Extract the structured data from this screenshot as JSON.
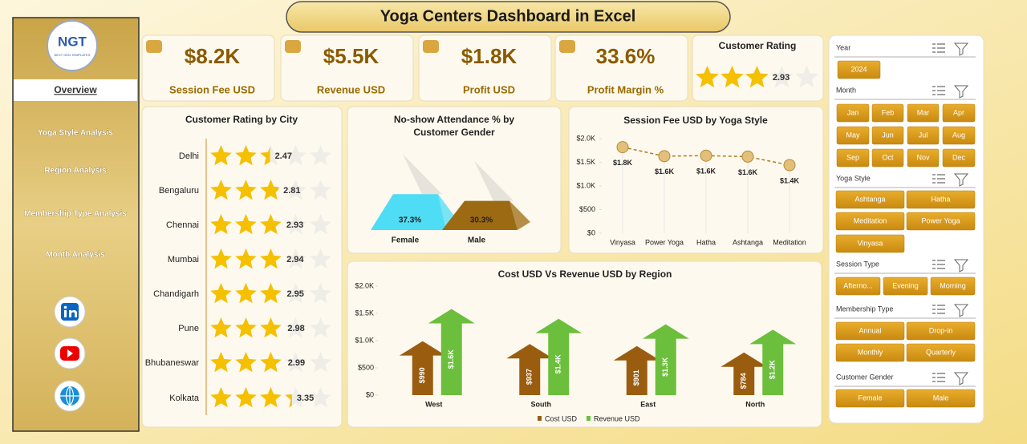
{
  "header": {
    "title": "Yoga Centers Dashboard in Excel"
  },
  "logo": {
    "name": "NGT",
    "tagline": "NEXT GEN TEMPLATES"
  },
  "nav": {
    "active": "Overview",
    "items": [
      "Yoga Style Analysis",
      "Region Analysis",
      "Membership Type Analysis",
      "Month Analysis"
    ]
  },
  "kpis": [
    {
      "value": "$8.2K",
      "label": "Session Fee USD"
    },
    {
      "value": "$5.5K",
      "label": "Revenue USD"
    },
    {
      "value": "$1.8K",
      "label": "Profit USD"
    },
    {
      "value": "33.6%",
      "label": "Profit Margin %"
    }
  ],
  "chart_data": [
    {
      "type": "rating",
      "title": "Customer Rating",
      "values": [
        2.93
      ],
      "xlim": [
        0,
        5
      ],
      "color": "#f5c000"
    },
    {
      "type": "rating",
      "title": "Customer Rating by City",
      "categories": [
        "Delhi",
        "Bengaluru",
        "Chennai",
        "Mumbai",
        "Chandigarh",
        "Pune",
        "Bhubaneswar",
        "Kolkata"
      ],
      "values": [
        2.47,
        2.81,
        2.93,
        2.94,
        2.95,
        2.98,
        2.99,
        3.35
      ],
      "xlim": [
        0,
        5
      ],
      "color": "#f5c000"
    },
    {
      "type": "prism",
      "title": "No-show Attendance % by Customer Gender",
      "categories": [
        "Female",
        "Male"
      ],
      "values": [
        37.3,
        30.3
      ],
      "value_labels": [
        "37.3%",
        "30.3%"
      ],
      "colors": [
        "#4fdcf5",
        "#9c6a12"
      ]
    },
    {
      "type": "line",
      "title": "Session Fee USD by Yoga Style",
      "categories": [
        "Vinyasa",
        "Power Yoga",
        "Hatha",
        "Ashtanga",
        "Meditation"
      ],
      "values": [
        1820,
        1630,
        1640,
        1620,
        1440
      ],
      "value_labels": [
        "$1.8K",
        "$1.6K",
        "$1.6K",
        "$1.6K",
        "$1.4K"
      ],
      "color": "#b07a20",
      "ylim": [
        0,
        2000
      ],
      "yticks": [
        {
          "value": 0,
          "label": "$0"
        },
        {
          "value": 500,
          "label": "$500"
        },
        {
          "value": 1000,
          "label": "$1.0K"
        },
        {
          "value": 1500,
          "label": "$1.5K"
        },
        {
          "value": 2000,
          "label": "$2.0K"
        }
      ]
    },
    {
      "type": "arrow_column",
      "title": "Cost USD Vs Revenue USD by Region",
      "categories": [
        "West",
        "South",
        "East",
        "North"
      ],
      "series": [
        {
          "name": "Cost USD",
          "color": "#9a5d10",
          "values": [
            990,
            937,
            901,
            784
          ],
          "value_labels": [
            "$990",
            "$937",
            "$901",
            "$784"
          ]
        },
        {
          "name": "Revenue USD",
          "color": "#6cbf3c",
          "values": [
            1580,
            1400,
            1300,
            1200
          ],
          "value_labels": [
            "$1.6K",
            "$1.4K",
            "$1.3K",
            "$1.2K"
          ]
        }
      ],
      "ylim": [
        0,
        2000
      ],
      "yticks": [
        {
          "value": 0,
          "label": "$0"
        },
        {
          "value": 500,
          "label": "$500"
        },
        {
          "value": 1000,
          "label": "$1.0K"
        },
        {
          "value": 1500,
          "label": "$1.5K"
        },
        {
          "value": 2000,
          "label": "$2.0K"
        }
      ],
      "legend": "bottom"
    }
  ],
  "slicers": [
    {
      "title": "Year",
      "items": [
        "2024"
      ]
    },
    {
      "title": "Month",
      "items": [
        "Jan",
        "Feb",
        "Mar",
        "Apr",
        "May",
        "Jun",
        "Jul",
        "Aug",
        "Sep",
        "Oct",
        "Nov",
        "Dec"
      ]
    },
    {
      "title": "Yoga Style",
      "items": [
        "Ashtanga",
        "Hatha",
        "Meditation",
        "Power Yoga",
        "Vinyasa"
      ]
    },
    {
      "title": "Session Type",
      "items": [
        "Afterno...",
        "Evening",
        "Morning"
      ]
    },
    {
      "title": "Membership Type",
      "items": [
        "Annual",
        "Drop-in",
        "Monthly",
        "Quarterly"
      ]
    },
    {
      "title": "Customer Gender",
      "items": [
        "Female",
        "Male"
      ]
    }
  ]
}
